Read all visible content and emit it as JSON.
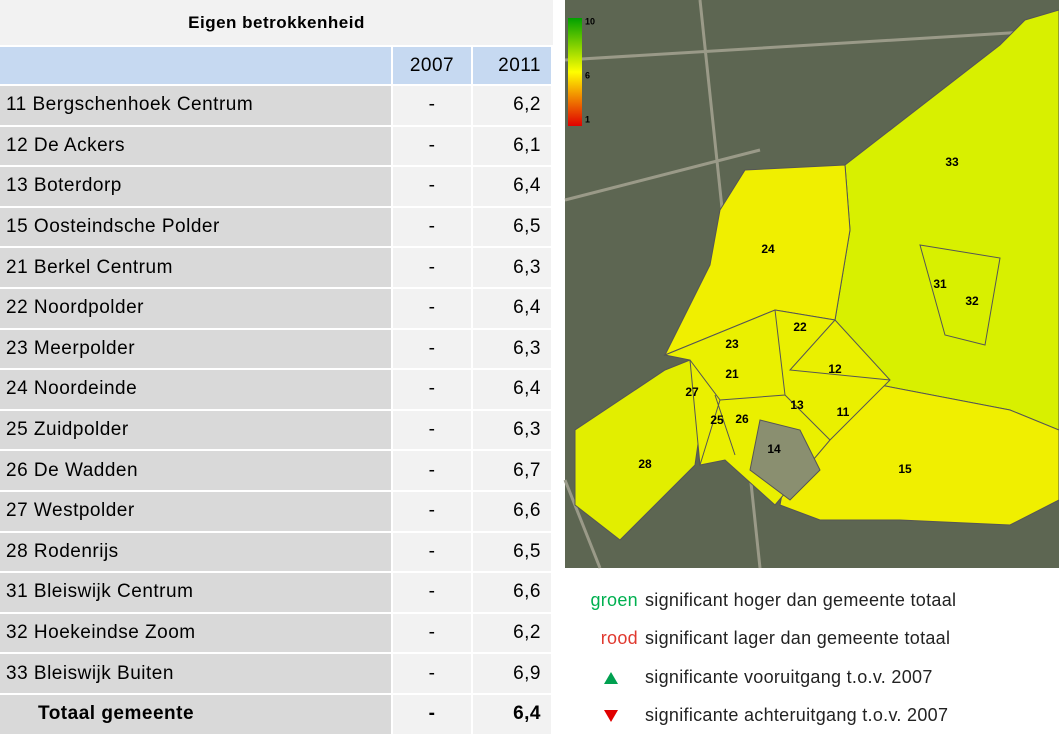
{
  "table": {
    "title": "Eigen betrokkenheid",
    "columns": [
      "2007",
      "2011"
    ],
    "rows": [
      [
        "11 Bergschenhoek Centrum",
        "-",
        "6,2"
      ],
      [
        "12 De Ackers",
        "-",
        "6,1"
      ],
      [
        "13 Boterdorp",
        "-",
        "6,4"
      ],
      [
        "15 Oosteindsche Polder",
        "-",
        "6,5"
      ],
      [
        "21 Berkel Centrum",
        "-",
        "6,3"
      ],
      [
        "22 Noordpolder",
        "-",
        "6,4"
      ],
      [
        "23 Meerpolder",
        "-",
        "6,3"
      ],
      [
        "24 Noordeinde",
        "-",
        "6,4"
      ],
      [
        "25 Zuidpolder",
        "-",
        "6,3"
      ],
      [
        "26 De Wadden",
        "-",
        "6,7"
      ],
      [
        "27 Westpolder",
        "-",
        "6,6"
      ],
      [
        "28 Rodenrijs",
        "-",
        "6,5"
      ],
      [
        "31 Bleiswijk Centrum",
        "-",
        "6,6"
      ],
      [
        "32 Hoekeindse Zoom",
        "-",
        "6,2"
      ],
      [
        "33 Bleiswijk Buiten",
        "-",
        "6,9"
      ]
    ],
    "total": [
      "Totaal gemeente",
      "-",
      "6,4"
    ]
  },
  "map": {
    "scale": [
      "10",
      "6",
      "1"
    ],
    "labels": [
      "33",
      "24",
      "31",
      "32",
      "22",
      "23",
      "21",
      "12",
      "27",
      "13",
      "11",
      "25",
      "26",
      "14",
      "28",
      "15"
    ]
  },
  "legend": [
    {
      "key": "groen",
      "text": "significant hoger dan gemeente totaal"
    },
    {
      "key": "rood",
      "text": "significant lager dan gemeente totaal"
    },
    {
      "text": "significante vooruitgang t.o.v. 2007"
    },
    {
      "text": "significante achteruitgang t.o.v. 2007"
    }
  ]
}
